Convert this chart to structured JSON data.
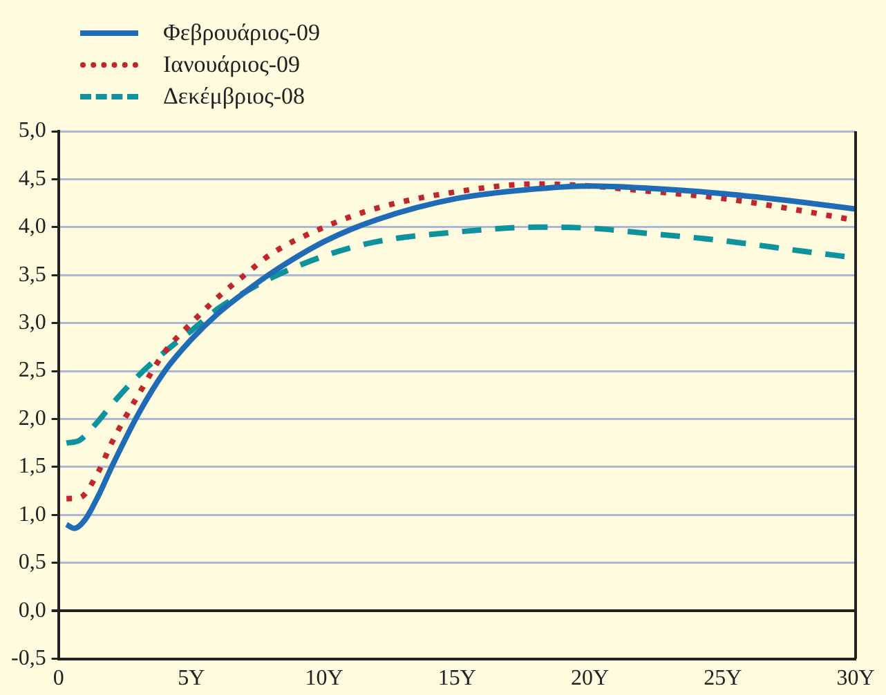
{
  "chart_data": {
    "type": "line",
    "xlim": [
      0,
      30
    ],
    "xticks": [
      0,
      {
        "value": 5,
        "label": "5Y"
      },
      {
        "value": 10,
        "label": "10Y"
      },
      {
        "value": 15,
        "label": "15Y"
      },
      {
        "value": 20,
        "label": "20Y"
      },
      {
        "value": 25,
        "label": "25Y"
      },
      {
        "value": 30,
        "label": "30Y"
      }
    ],
    "ylim": [
      -0.5,
      5
    ],
    "yticks": [
      {
        "value": -0.5,
        "label": "-0,5"
      },
      {
        "value": 0,
        "label": "0,0"
      },
      {
        "value": 0.5,
        "label": "0,5"
      },
      {
        "value": 1,
        "label": "1,0"
      },
      {
        "value": 1.5,
        "label": "1,5"
      },
      {
        "value": 2,
        "label": "2,0"
      },
      {
        "value": 2.5,
        "label": "2,5"
      },
      {
        "value": 3,
        "label": "3,0"
      },
      {
        "value": 3.5,
        "label": "3,5"
      },
      {
        "value": 4,
        "label": "4,0"
      },
      {
        "value": 4.5,
        "label": "4,5"
      },
      {
        "value": 5,
        "label": "5,0"
      }
    ],
    "grid": "y",
    "legend": "top left",
    "marker": "none",
    "series": [
      {
        "name": "Φεβρουάριος-09",
        "color": "#1f6bb5",
        "line_style": "solid",
        "x": [
          0.3,
          0.6,
          1,
          1.5,
          2,
          3,
          4,
          5,
          6,
          7,
          8,
          10,
          12,
          15,
          18,
          20,
          22,
          25,
          28,
          30
        ],
        "values": [
          0.9,
          0.86,
          0.95,
          1.2,
          1.5,
          2.05,
          2.5,
          2.83,
          3.1,
          3.32,
          3.52,
          3.85,
          4.08,
          4.3,
          4.4,
          4.43,
          4.41,
          4.35,
          4.26,
          4.19
        ]
      },
      {
        "name": "Ιανουάριος-09",
        "color": "#c0272d",
        "line_style": "dotted",
        "x": [
          0.3,
          0.8,
          1.5,
          2,
          3,
          4,
          5,
          6,
          7,
          8,
          10,
          12,
          15,
          18,
          20,
          22,
          25,
          28,
          30
        ],
        "values": [
          1.17,
          1.18,
          1.45,
          1.75,
          2.25,
          2.7,
          3.0,
          3.27,
          3.5,
          3.72,
          4.0,
          4.2,
          4.37,
          4.45,
          4.43,
          4.38,
          4.3,
          4.17,
          4.07
        ]
      },
      {
        "name": "Δεκέμβριος-08",
        "color": "#0e939d",
        "line_style": "dashed",
        "x": [
          0.3,
          0.8,
          1.5,
          2,
          3,
          4,
          5,
          6,
          7,
          8,
          10,
          12,
          15,
          18,
          20,
          22,
          25,
          28,
          30
        ],
        "values": [
          1.75,
          1.78,
          1.98,
          2.15,
          2.45,
          2.7,
          2.92,
          3.15,
          3.32,
          3.47,
          3.7,
          3.85,
          3.95,
          4.0,
          3.99,
          3.94,
          3.86,
          3.75,
          3.68
        ]
      }
    ]
  }
}
